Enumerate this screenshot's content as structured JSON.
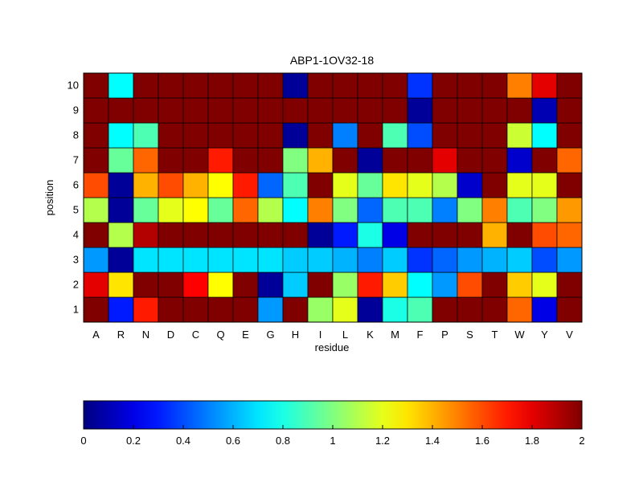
{
  "chart_data": {
    "type": "heatmap",
    "title": "ABP1-1OV32-18",
    "xlabel": "residue",
    "ylabel": "position",
    "x_categories": [
      "A",
      "R",
      "N",
      "D",
      "C",
      "Q",
      "E",
      "G",
      "H",
      "I",
      "L",
      "K",
      "M",
      "F",
      "P",
      "S",
      "T",
      "W",
      "Y",
      "V"
    ],
    "y_categories": [
      "1",
      "2",
      "3",
      "4",
      "5",
      "6",
      "7",
      "8",
      "9",
      "10"
    ],
    "values": [
      [
        2.0,
        0.3,
        1.7,
        2.0,
        2.0,
        2.0,
        2.0,
        0.55,
        2.0,
        1.05,
        1.2,
        0.05,
        0.8,
        0.9,
        2.0,
        2.0,
        2.0,
        1.55,
        0.2,
        2.0
      ],
      [
        1.8,
        1.3,
        2.0,
        2.0,
        1.75,
        1.25,
        2.0,
        0.05,
        0.65,
        2.0,
        1.05,
        1.7,
        1.35,
        0.75,
        0.55,
        1.6,
        2.0,
        1.35,
        1.2,
        2.0
      ],
      [
        0.55,
        0.05,
        0.7,
        0.7,
        0.7,
        0.7,
        0.7,
        0.7,
        0.65,
        0.65,
        0.6,
        0.5,
        0.65,
        0.35,
        0.45,
        0.55,
        0.6,
        0.65,
        0.4,
        0.55
      ],
      [
        2.0,
        1.1,
        1.9,
        2.0,
        2.0,
        2.0,
        2.0,
        2.0,
        2.0,
        0.05,
        0.3,
        0.8,
        0.2,
        2.0,
        2.0,
        2.0,
        1.4,
        2.0,
        1.6,
        1.55
      ],
      [
        1.1,
        0.05,
        0.95,
        1.2,
        1.25,
        0.95,
        1.55,
        1.1,
        0.75,
        1.5,
        1.0,
        0.45,
        0.9,
        0.9,
        0.5,
        1.0,
        1.5,
        0.9,
        1.0,
        1.45
      ],
      [
        1.6,
        0.05,
        1.4,
        1.6,
        1.4,
        1.25,
        1.7,
        0.45,
        0.9,
        2.0,
        1.2,
        0.95,
        1.3,
        1.2,
        1.1,
        0.15,
        2.0,
        1.2,
        1.2,
        2.0
      ],
      [
        2.0,
        0.95,
        1.55,
        2.0,
        2.0,
        1.7,
        2.0,
        2.0,
        1.0,
        1.4,
        2.0,
        0.05,
        2.0,
        2.0,
        1.8,
        2.0,
        2.0,
        0.15,
        2.0,
        1.55
      ],
      [
        2.0,
        0.75,
        0.9,
        2.0,
        2.0,
        2.0,
        2.0,
        2.0,
        0.05,
        2.0,
        0.5,
        2.0,
        0.9,
        0.4,
        2.0,
        2.0,
        2.0,
        1.15,
        0.75,
        2.0
      ],
      [
        2.0,
        2.0,
        2.0,
        2.0,
        2.0,
        2.0,
        2.0,
        2.0,
        2.0,
        2.0,
        2.0,
        2.0,
        2.0,
        0.05,
        2.0,
        2.0,
        2.0,
        2.0,
        0.1,
        2.0
      ],
      [
        2.0,
        0.75,
        2.0,
        2.0,
        2.0,
        2.0,
        2.0,
        2.0,
        0.05,
        2.0,
        2.0,
        2.0,
        2.0,
        0.35,
        2.0,
        2.0,
        2.0,
        1.5,
        1.8,
        2.0
      ]
    ],
    "colormap": "jet",
    "clim": [
      0,
      2
    ],
    "colorbar": {
      "position": "bottom",
      "ticks": [
        "0",
        "0.2",
        "0.4",
        "0.6",
        "0.8",
        "1",
        "1.2",
        "1.4",
        "1.6",
        "1.8",
        "2"
      ]
    }
  }
}
